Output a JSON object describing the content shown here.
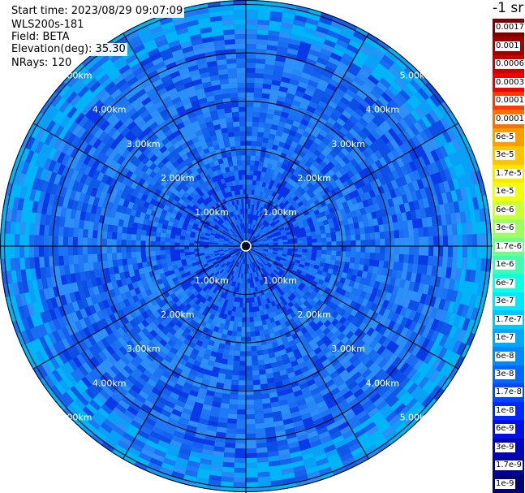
{
  "info": {
    "start_time": "Start time: 2023/08/29 09:07:09",
    "instrument": "WLS200s-181",
    "field": "Field: BETA",
    "elevation": "Elevation(deg): 35.30",
    "nrays": "NRays: 120"
  },
  "colorbar": {
    "title": "-1 sr",
    "entries": [
      {
        "label": "0.0017",
        "color": "#7a0000"
      },
      {
        "label": "0.001",
        "color": "#a00000"
      },
      {
        "label": "0.0006",
        "color": "#c80000"
      },
      {
        "label": "0.0003",
        "color": "#f00000"
      },
      {
        "label": "0.00017",
        "color": "#ff3a00"
      },
      {
        "label": "0.0001",
        "color": "#ff7000"
      },
      {
        "label": "6e-5",
        "color": "#ff9c00"
      },
      {
        "label": "3e-5",
        "color": "#ffc400"
      },
      {
        "label": "1.7e-5",
        "color": "#ffe800"
      },
      {
        "label": "1e-5",
        "color": "#f0ff10"
      },
      {
        "label": "6e-6",
        "color": "#c8ff38"
      },
      {
        "label": "3e-6",
        "color": "#9cff62"
      },
      {
        "label": "1.7e-6",
        "color": "#70ff88"
      },
      {
        "label": "1e-6",
        "color": "#40ffb0"
      },
      {
        "label": "6e-7",
        "color": "#10ffe0"
      },
      {
        "label": "3e-7",
        "color": "#00e8ff"
      },
      {
        "label": "1.7e-7",
        "color": "#00c8ff"
      },
      {
        "label": "1e-7",
        "color": "#00a8ff"
      },
      {
        "label": "6e-8",
        "color": "#0088ff"
      },
      {
        "label": "3e-8",
        "color": "#0068ff"
      },
      {
        "label": "1.7e-8",
        "color": "#0048ff"
      },
      {
        "label": "1e-8",
        "color": "#0028ff"
      },
      {
        "label": "6e-9",
        "color": "#0010e0"
      },
      {
        "label": "3e-9",
        "color": "#0000c0"
      },
      {
        "label": "1.7e-9",
        "color": "#00009a"
      },
      {
        "label": "1e-9",
        "color": "#000070"
      }
    ]
  },
  "plot": {
    "range_rings": [
      "1.00km",
      "2.00km",
      "3.00km",
      "4.00km",
      "5.00km"
    ],
    "rays": 120,
    "dominant_color": "#1a6cf0",
    "low_color": "#0a30e8",
    "high_color": "#00b4f8"
  }
}
